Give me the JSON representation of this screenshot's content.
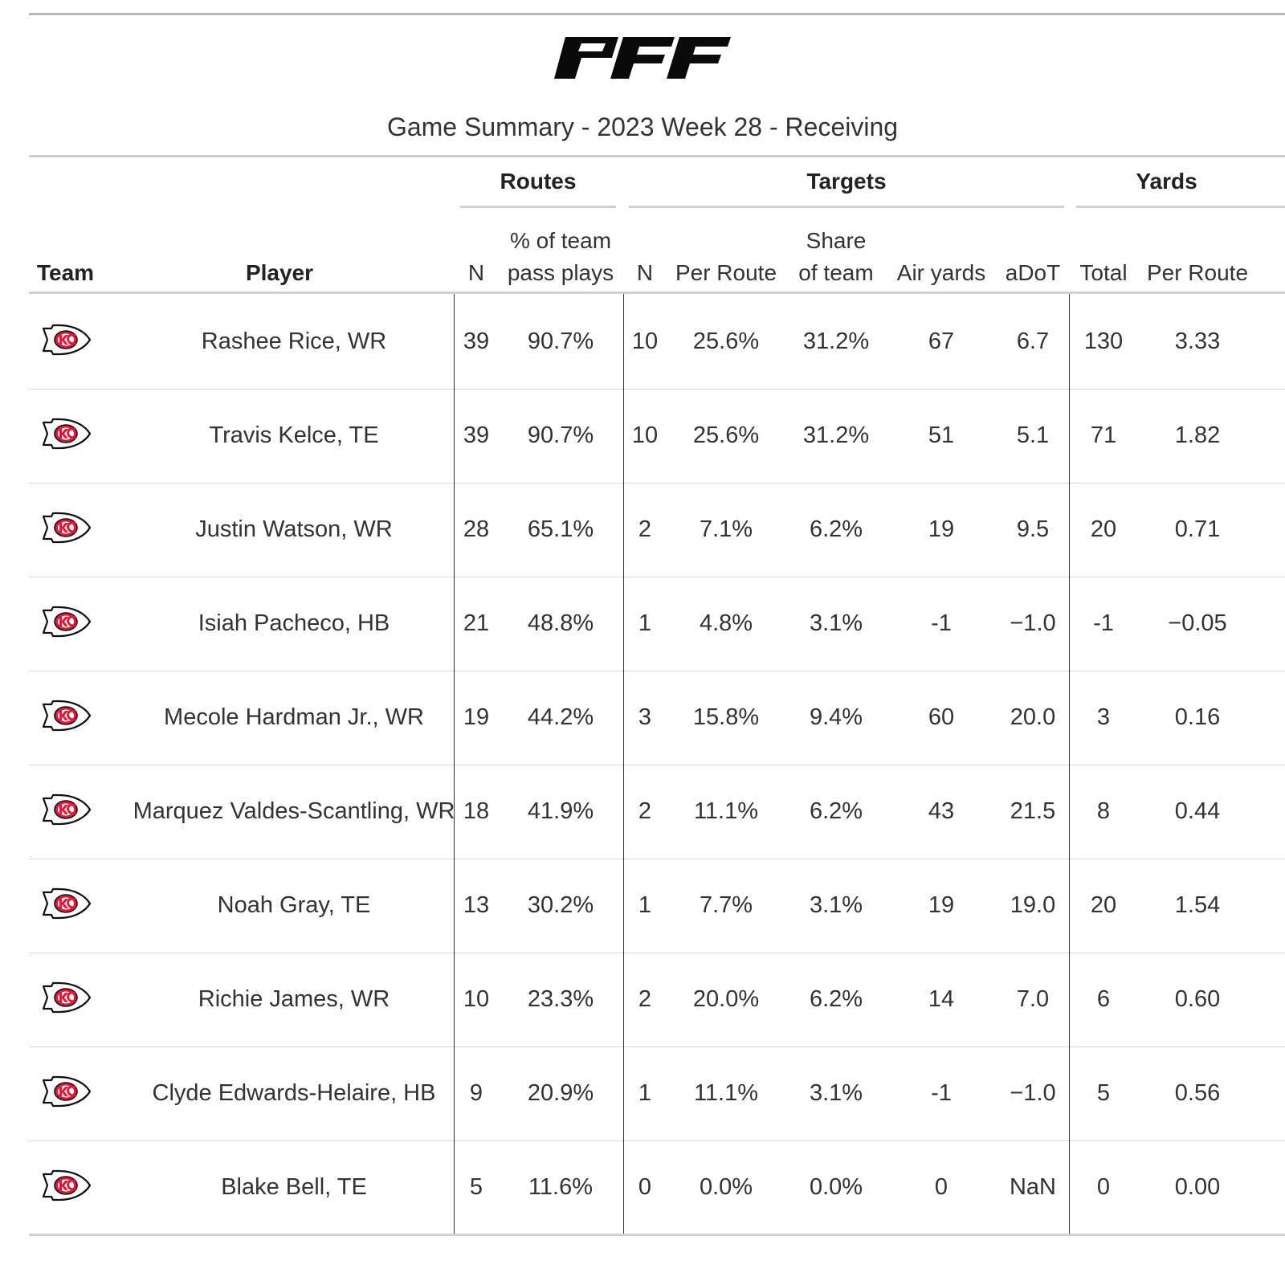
{
  "logo_text": "PFF",
  "title": "Game Summary - 2023 Week 28 - Receiving",
  "groups": {
    "routes": "Routes",
    "targets": "Targets",
    "yards": "Yards"
  },
  "columns": {
    "team": "Team",
    "player": "Player",
    "routes_n": "N",
    "routes_pct_1": "% of team",
    "routes_pct_2": "pass plays",
    "targets_n": "N",
    "targets_per_route": "Per Route",
    "targets_share_1": "Share",
    "targets_share_2": "of team",
    "air_yards": "Air yards",
    "adot": "aDoT",
    "yards_total": "Total",
    "yards_per_route": "Per Route"
  },
  "team_icon": "chiefs-arrowhead-icon",
  "colors": {
    "accent": "#e31837",
    "rule": "#d0d0d0"
  },
  "rows": [
    {
      "player": "Rashee Rice, WR",
      "routes_n": "39",
      "routes_pct": "90.7%",
      "targets_n": "10",
      "targets_per_route": "25.6%",
      "share": "31.2%",
      "air_yards": "67",
      "adot": "6.7",
      "yards_total": "130",
      "yards_per_route": "3.33"
    },
    {
      "player": "Travis Kelce, TE",
      "routes_n": "39",
      "routes_pct": "90.7%",
      "targets_n": "10",
      "targets_per_route": "25.6%",
      "share": "31.2%",
      "air_yards": "51",
      "adot": "5.1",
      "yards_total": "71",
      "yards_per_route": "1.82"
    },
    {
      "player": "Justin Watson, WR",
      "routes_n": "28",
      "routes_pct": "65.1%",
      "targets_n": "2",
      "targets_per_route": "7.1%",
      "share": "6.2%",
      "air_yards": "19",
      "adot": "9.5",
      "yards_total": "20",
      "yards_per_route": "0.71"
    },
    {
      "player": "Isiah Pacheco, HB",
      "routes_n": "21",
      "routes_pct": "48.8%",
      "targets_n": "1",
      "targets_per_route": "4.8%",
      "share": "3.1%",
      "air_yards": "-1",
      "adot": "−1.0",
      "yards_total": "-1",
      "yards_per_route": "−0.05"
    },
    {
      "player": "Mecole Hardman Jr., WR",
      "routes_n": "19",
      "routes_pct": "44.2%",
      "targets_n": "3",
      "targets_per_route": "15.8%",
      "share": "9.4%",
      "air_yards": "60",
      "adot": "20.0",
      "yards_total": "3",
      "yards_per_route": "0.16"
    },
    {
      "player": "Marquez Valdes-Scantling, WR",
      "routes_n": "18",
      "routes_pct": "41.9%",
      "targets_n": "2",
      "targets_per_route": "11.1%",
      "share": "6.2%",
      "air_yards": "43",
      "adot": "21.5",
      "yards_total": "8",
      "yards_per_route": "0.44"
    },
    {
      "player": "Noah Gray, TE",
      "routes_n": "13",
      "routes_pct": "30.2%",
      "targets_n": "1",
      "targets_per_route": "7.7%",
      "share": "3.1%",
      "air_yards": "19",
      "adot": "19.0",
      "yards_total": "20",
      "yards_per_route": "1.54"
    },
    {
      "player": "Richie James, WR",
      "routes_n": "10",
      "routes_pct": "23.3%",
      "targets_n": "2",
      "targets_per_route": "20.0%",
      "share": "6.2%",
      "air_yards": "14",
      "adot": "7.0",
      "yards_total": "6",
      "yards_per_route": "0.60"
    },
    {
      "player": "Clyde Edwards-Helaire, HB",
      "routes_n": "9",
      "routes_pct": "20.9%",
      "targets_n": "1",
      "targets_per_route": "11.1%",
      "share": "3.1%",
      "air_yards": "-1",
      "adot": "−1.0",
      "yards_total": "5",
      "yards_per_route": "0.56"
    },
    {
      "player": "Blake Bell, TE",
      "routes_n": "5",
      "routes_pct": "11.6%",
      "targets_n": "0",
      "targets_per_route": "0.0%",
      "share": "0.0%",
      "air_yards": "0",
      "adot": "NaN",
      "yards_total": "0",
      "yards_per_route": "0.00"
    }
  ]
}
